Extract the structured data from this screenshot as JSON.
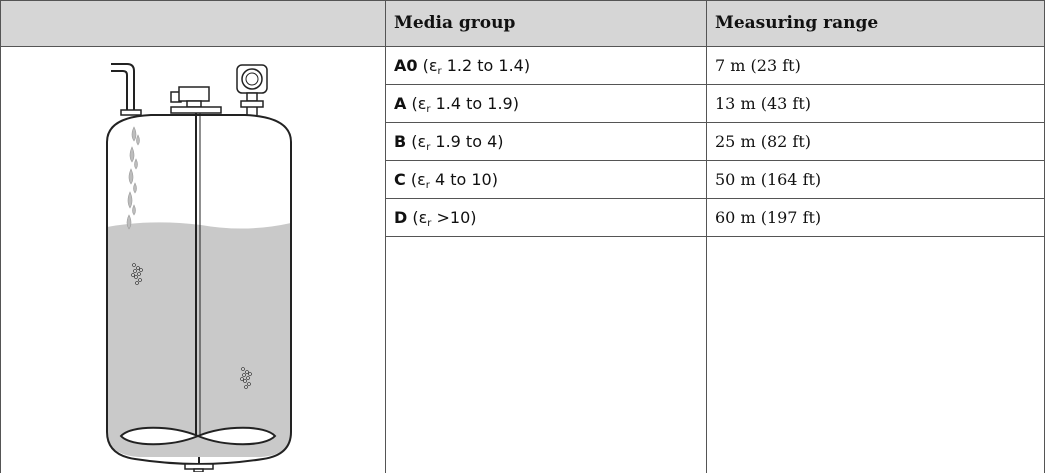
{
  "header": {
    "col_image": "",
    "col_media": "Media group",
    "col_range": "Measuring range"
  },
  "rows": [
    {
      "group": "A0",
      "eps_symbol": "ε",
      "eps_sub": "r",
      "eps_text": " 1.2 to 1.4)",
      "range": "7 m (23 ft)"
    },
    {
      "group": "A",
      "eps_symbol": "ε",
      "eps_sub": "r",
      "eps_text": " 1.4 to 1.9)",
      "range": "13 m (43 ft)"
    },
    {
      "group": "B",
      "eps_symbol": "ε",
      "eps_sub": "r",
      "eps_text": " 1.9 to 4)",
      "range": "25 m (82 ft)"
    },
    {
      "group": "C",
      "eps_symbol": "ε",
      "eps_sub": "r",
      "eps_text": " 4 to 10)",
      "range": "50 m (164 ft)"
    },
    {
      "group": "D",
      "eps_symbol": "ε",
      "eps_sub": "r",
      "eps_text": " >10)",
      "range": "60 m (197 ft)"
    }
  ]
}
